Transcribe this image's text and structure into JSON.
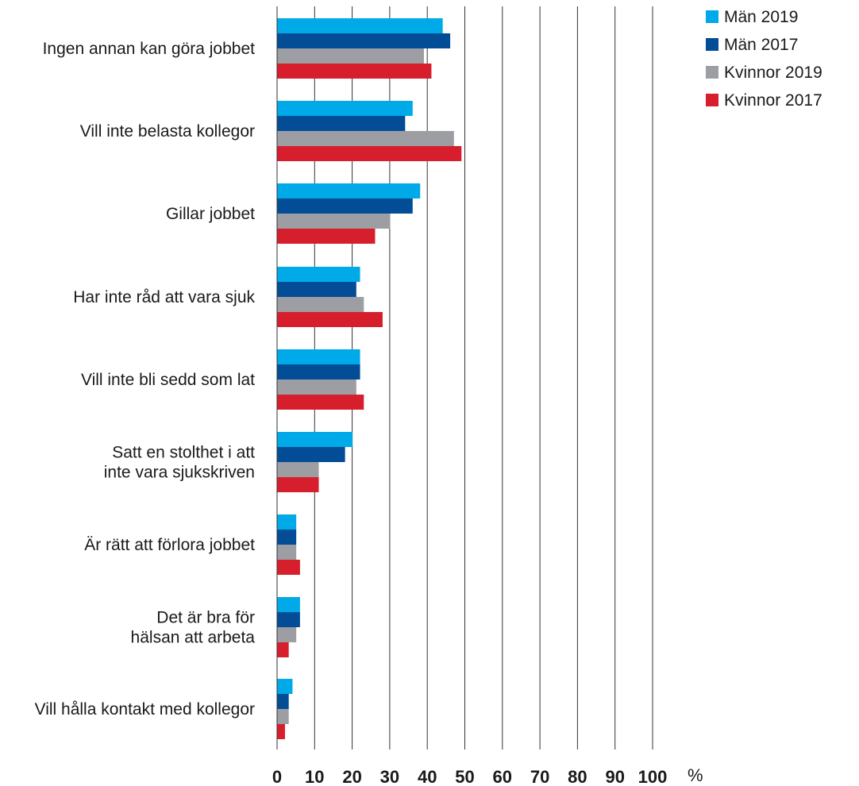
{
  "chart_data": {
    "type": "bar",
    "orientation": "horizontal",
    "title": "",
    "xlabel": "",
    "ylabel": "",
    "unit": "%",
    "xlim": [
      0,
      100
    ],
    "ticks": [
      "0",
      "10",
      "20",
      "30",
      "40",
      "50",
      "60",
      "70",
      "80",
      "90",
      "100"
    ],
    "grid": true,
    "legend_position": "top-right",
    "categories": [
      [
        "Ingen annan kan göra jobbet"
      ],
      [
        "Vill inte belasta kollegor"
      ],
      [
        "Gillar jobbet"
      ],
      [
        "Har inte råd att vara sjuk"
      ],
      [
        "Vill inte bli sedd som lat"
      ],
      [
        "Satt en stolthet i att",
        "inte vara sjukskriven"
      ],
      [
        "Är rätt att förlora jobbet"
      ],
      [
        "Det är bra för",
        "hälsan att arbeta"
      ],
      [
        "Vill hålla kontakt med kollegor"
      ]
    ],
    "series": [
      {
        "name": "Män 2019",
        "color": "#00a9e8",
        "values": [
          44,
          36,
          38,
          22,
          22,
          20,
          5,
          6,
          4
        ]
      },
      {
        "name": "Män 2017",
        "color": "#024d96",
        "values": [
          46,
          34,
          36,
          21,
          22,
          18,
          5,
          6,
          3
        ]
      },
      {
        "name": "Kvinnor 2019",
        "color": "#9c9ea4",
        "values": [
          39,
          47,
          30,
          23,
          21,
          11,
          5,
          5,
          3
        ]
      },
      {
        "name": "Kvinnor 2017",
        "color": "#d71e2c",
        "values": [
          41,
          49,
          26,
          28,
          23,
          11,
          6,
          3,
          2
        ]
      }
    ]
  }
}
